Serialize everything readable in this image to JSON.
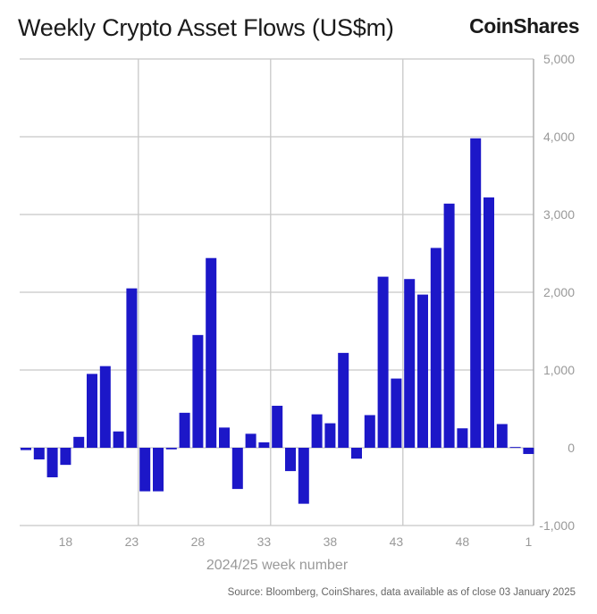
{
  "title": "Weekly Crypto Asset Flows (US$m)",
  "logo": "CoinShares",
  "source": "Source: Bloomberg, CoinShares, data available as of close 03 January 2025",
  "chart_data": {
    "type": "bar",
    "title": "Weekly Crypto Asset Flows (US$m)",
    "xlabel": "2024/25 week number",
    "ylabel": "",
    "ylim": [
      -1000,
      5000
    ],
    "yticks": [
      -1000,
      0,
      1000,
      2000,
      3000,
      4000,
      5000
    ],
    "ytick_labels": [
      "-1,000",
      "0",
      "1,000",
      "2,000",
      "3,000",
      "4,000",
      "5,000"
    ],
    "y_axis_side": "right",
    "xtick_labels": [
      "18",
      "23",
      "28",
      "33",
      "38",
      "43",
      "48",
      "1"
    ],
    "grid": true,
    "bar_color": "#1c17c8",
    "categories": [
      "15",
      "16",
      "17",
      "18",
      "19",
      "20",
      "21",
      "22",
      "23",
      "24",
      "25",
      "26",
      "27",
      "28",
      "29",
      "30",
      "31",
      "32",
      "33",
      "34",
      "35",
      "36",
      "37",
      "38",
      "39",
      "40",
      "41",
      "42",
      "43",
      "44",
      "45",
      "46",
      "47",
      "48",
      "49",
      "50",
      "51",
      "52",
      "1"
    ],
    "values": [
      -30,
      -150,
      -380,
      -220,
      140,
      950,
      1050,
      210,
      2050,
      -560,
      -560,
      -20,
      450,
      1450,
      2440,
      260,
      -530,
      180,
      70,
      540,
      -300,
      -720,
      430,
      315,
      1220,
      -140,
      420,
      2200,
      890,
      2170,
      1970,
      2570,
      3140,
      250,
      3980,
      3220,
      305,
      10,
      -80
    ]
  }
}
